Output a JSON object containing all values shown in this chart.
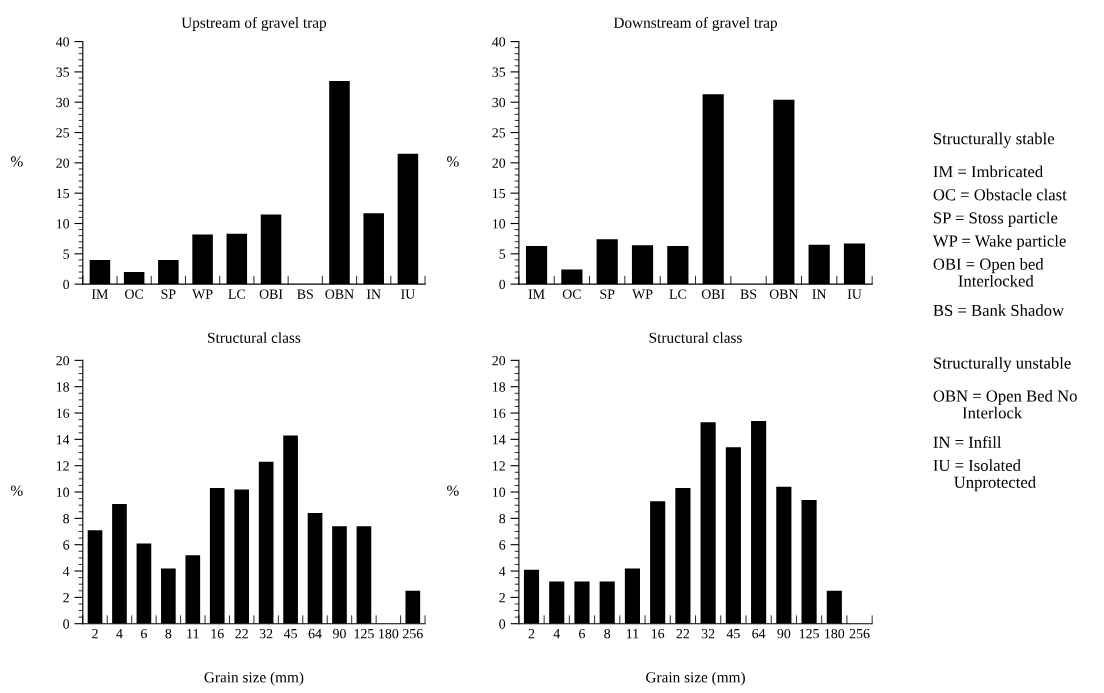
{
  "chart_data": [
    {
      "type": "bar",
      "title": "Upstream of gravel trap",
      "xlabel": "Structural class",
      "ylabel": "%",
      "categories": [
        "IM",
        "OC",
        "SP",
        "WP",
        "LC",
        "OBI",
        "BS",
        "OBN",
        "IN",
        "IU"
      ],
      "color": "#000000",
      "values": [
        4,
        2,
        4,
        8.2,
        8.3,
        11.5,
        0,
        33.5,
        11.7,
        21.5
      ],
      "ylim": [
        0,
        40
      ],
      "yticks": [
        0,
        5,
        10,
        15,
        20,
        25,
        30,
        35,
        40
      ],
      "grid": false
    },
    {
      "type": "bar",
      "title": "Downstream of gravel trap",
      "xlabel": "Structural class",
      "ylabel": "%",
      "categories": [
        "IM",
        "OC",
        "SP",
        "WP",
        "LC",
        "OBI",
        "BS",
        "OBN",
        "IN",
        "IU"
      ],
      "color": "#000000",
      "values": [
        6.3,
        2.4,
        7.4,
        6.4,
        6.3,
        31.3,
        0,
        30.4,
        6.5,
        6.7
      ],
      "ylim": [
        0,
        40
      ],
      "yticks": [
        0,
        5,
        10,
        15,
        20,
        25,
        30,
        35,
        40
      ],
      "grid": false
    },
    {
      "type": "other",
      "annotations": [
        "Structurally stable",
        "IM = Imbricated",
        "OC = Obstacle clast",
        "SP = Stoss particle",
        "WP = Wake particle",
        "OBI = Open bed\n      Interlocked",
        "BS = Bank Shadow",
        "Structurally unstable",
        "OBN = Open Bed No\n       Interlock",
        "IN = Infill",
        "IU = Isolated\n     Unprotected"
      ]
    },
    {
      "type": "bar",
      "xlabel": "Grain size (mm)",
      "ylabel": "%",
      "categories": [
        "2",
        "4",
        "6",
        "8",
        "11",
        "16",
        "22",
        "32",
        "45",
        "64",
        "90",
        "125",
        "180",
        "256"
      ],
      "color": "#000000",
      "values": [
        7.1,
        9.1,
        6.1,
        4.2,
        5.2,
        10.3,
        10.2,
        12.3,
        14.3,
        8.4,
        7.4,
        7.4,
        0,
        2.5
      ],
      "ylim": [
        0,
        20
      ],
      "yticks": [
        0,
        2,
        4,
        6,
        8,
        10,
        12,
        14,
        16,
        18,
        20
      ],
      "grid": false
    },
    {
      "type": "bar",
      "xlabel": "Grain size (mm)",
      "ylabel": "%",
      "categories": [
        "2",
        "4",
        "6",
        "8",
        "11",
        "16",
        "22",
        "32",
        "45",
        "64",
        "90",
        "125",
        "180",
        "256"
      ],
      "color": "#000000",
      "values": [
        4.1,
        3.2,
        3.2,
        3.2,
        4.2,
        9.3,
        10.3,
        15.3,
        13.4,
        15.4,
        10.4,
        9.4,
        2.5,
        0
      ],
      "ylim": [
        0,
        20
      ],
      "yticks": [
        0,
        2,
        4,
        6,
        8,
        10,
        12,
        14,
        16,
        18,
        20
      ],
      "grid": false
    }
  ]
}
